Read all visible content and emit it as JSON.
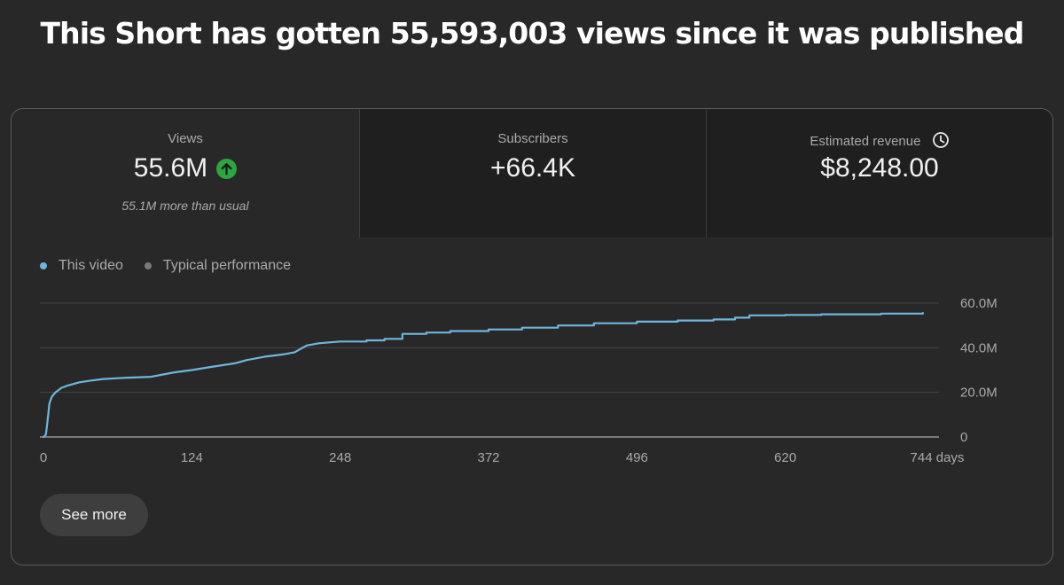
{
  "page_title": "This Short has gotten 55,593,003 views since it was published",
  "metrics": [
    {
      "label": "Views",
      "value": "55.6M",
      "sub": "55.1M more than usual",
      "icon": "up-arrow-icon"
    },
    {
      "label": "Subscribers",
      "value": "+66.4K"
    },
    {
      "label": "Estimated revenue",
      "value": "$8,248.00",
      "icon": "clock-icon"
    }
  ],
  "legend": [
    {
      "label": "This video",
      "color": "#6fb6de"
    },
    {
      "label": "Typical performance",
      "color": "#7a7a7a"
    }
  ],
  "see_more_label": "See more",
  "colors": {
    "accent_line": "#6fb6de",
    "up_badge": "#2ba640",
    "background": "#282828"
  },
  "chart_data": {
    "type": "line",
    "x_unit": "days",
    "y_unit": "views",
    "xlim": [
      0,
      744
    ],
    "ylim": [
      0,
      60000000
    ],
    "x_ticks": [
      {
        "value": 0,
        "label": "0"
      },
      {
        "value": 124,
        "label": "124"
      },
      {
        "value": 248,
        "label": "248"
      },
      {
        "value": 372,
        "label": "372"
      },
      {
        "value": 496,
        "label": "496"
      },
      {
        "value": 620,
        "label": "620"
      },
      {
        "value": 744,
        "label": "744 days"
      }
    ],
    "y_ticks": [
      {
        "value": 0,
        "label": "0"
      },
      {
        "value": 20000000,
        "label": "20.0M"
      },
      {
        "value": 40000000,
        "label": "40.0M"
      },
      {
        "value": 60000000,
        "label": "60.0M"
      }
    ],
    "grid": true,
    "legend_position": "top-left",
    "series": [
      {
        "name": "This video",
        "values": [
          [
            0,
            0
          ],
          [
            2,
            1000000
          ],
          [
            3,
            5000000
          ],
          [
            4,
            10000000
          ],
          [
            5,
            15000000
          ],
          [
            7,
            18000000
          ],
          [
            10,
            20000000
          ],
          [
            15,
            22000000
          ],
          [
            20,
            23000000
          ],
          [
            30,
            24500000
          ],
          [
            40,
            25300000
          ],
          [
            50,
            26000000
          ],
          [
            60,
            26300000
          ],
          [
            70,
            26600000
          ],
          [
            80,
            26800000
          ],
          [
            90,
            27000000
          ],
          [
            100,
            28000000
          ],
          [
            110,
            29000000
          ],
          [
            124,
            30000000
          ],
          [
            140,
            31400000
          ],
          [
            160,
            33000000
          ],
          [
            170,
            34500000
          ],
          [
            185,
            36000000
          ],
          [
            200,
            37000000
          ],
          [
            210,
            38000000
          ],
          [
            215,
            39500000
          ],
          [
            220,
            41000000
          ],
          [
            230,
            42000000
          ],
          [
            248,
            42800000
          ],
          [
            270,
            43300000
          ],
          [
            285,
            44000000
          ],
          [
            300,
            46200000
          ],
          [
            320,
            46800000
          ],
          [
            340,
            47500000
          ],
          [
            372,
            48200000
          ],
          [
            400,
            49000000
          ],
          [
            430,
            50000000
          ],
          [
            460,
            51000000
          ],
          [
            496,
            51700000
          ],
          [
            530,
            52200000
          ],
          [
            560,
            52700000
          ],
          [
            578,
            53500000
          ],
          [
            590,
            54500000
          ],
          [
            620,
            54700000
          ],
          [
            650,
            55000000
          ],
          [
            700,
            55300000
          ],
          [
            735,
            55600000
          ]
        ]
      }
    ]
  }
}
